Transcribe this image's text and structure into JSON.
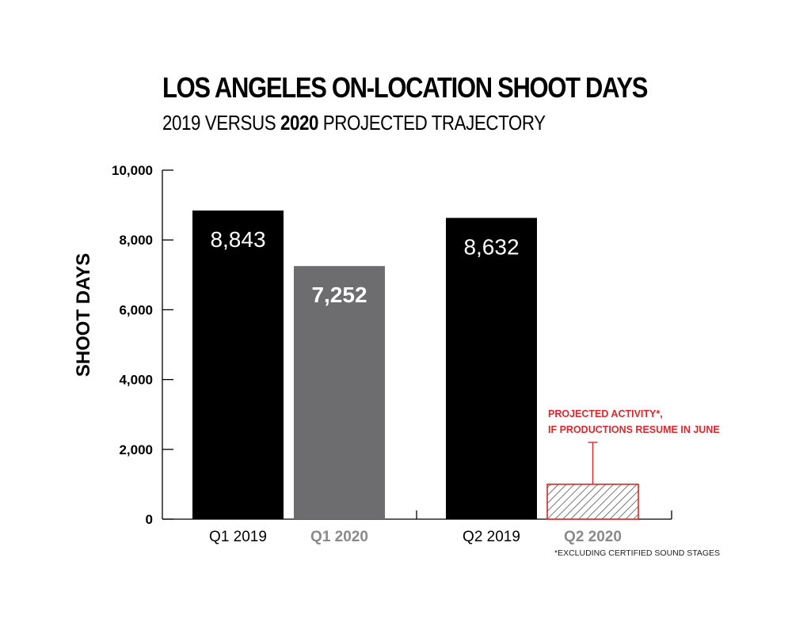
{
  "title": "LOS ANGELES ON-LOCATION SHOOT DAYS",
  "subtitle": {
    "part1": "2019 VERSUS ",
    "bold": "2020",
    "part2": " PROJECTED TRAJECTORY"
  },
  "colors": {
    "bar_2019": "#000000",
    "bar_2020": "#6d6d6f",
    "projected": "#e0252b",
    "label_2020": "#8a8a8c"
  },
  "chart_data": {
    "type": "bar",
    "ylabel": "SHOOT DAYS",
    "ylim": [
      0,
      10000
    ],
    "yticks": [
      0,
      2000,
      4000,
      6000,
      8000,
      10000
    ],
    "ytick_labels": [
      "0",
      "2,000",
      "4,000",
      "6,000",
      "8,000",
      "10,000"
    ],
    "categories": [
      "Q1 2019",
      "Q1 2020",
      "Q2 2019",
      "Q2 2020"
    ],
    "values": [
      8843,
      7252,
      8632,
      1000
    ],
    "value_labels": [
      "8,843",
      "7,252",
      "8,632",
      ""
    ],
    "bar_styles": [
      "solid-black",
      "solid-gray",
      "solid-black",
      "hatched-projected"
    ],
    "projected_range": {
      "category": "Q2 2020",
      "low": 1000,
      "high": 2200
    },
    "annotation_lines": [
      "PROJECTED ACTIVITY*,",
      "IF PRODUCTIONS RESUME IN JUNE"
    ],
    "footnote": "*EXCLUDING CERTIFIED SOUND STAGES"
  }
}
